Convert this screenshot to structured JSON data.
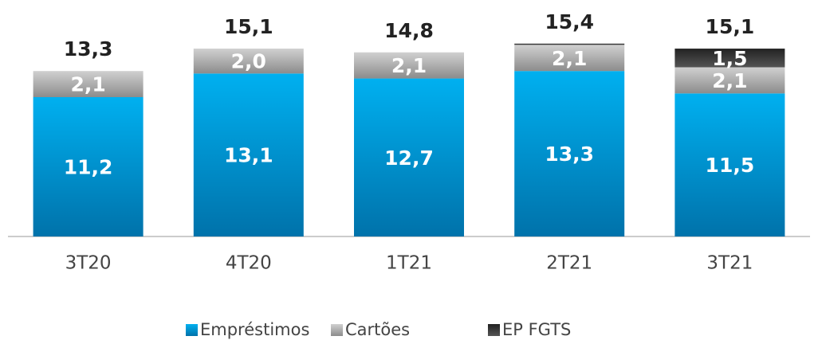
{
  "chart_data": {
    "type": "stacked_bar",
    "categories": [
      "3T20",
      "4T20",
      "1T21",
      "2T21",
      "3T21"
    ],
    "series": [
      {
        "name": "Empréstimos",
        "color": "#00b0f0",
        "values": [
          11.2,
          13.1,
          12.7,
          13.3,
          11.5
        ],
        "value_labels": [
          "11,2",
          "13,1",
          "12,7",
          "13,3",
          "11,5"
        ]
      },
      {
        "name": "Cartões",
        "color": "#a6a6a6",
        "values": [
          2.1,
          2.0,
          2.1,
          2.1,
          2.1
        ],
        "value_labels": [
          "2,1",
          "2,0",
          "2,1",
          "2,1",
          "2,1"
        ]
      },
      {
        "name": "EP FGTS",
        "color": "#333333",
        "values": [
          null,
          null,
          null,
          0.1,
          1.5
        ],
        "value_labels": [
          null,
          null,
          null,
          null,
          "1,5"
        ]
      }
    ],
    "totals": [
      13.3,
      15.1,
      14.8,
      15.4,
      15.1
    ],
    "total_labels": [
      "13,3",
      "15,1",
      "14,8",
      "15,4",
      "15,1"
    ],
    "ylim": [
      0,
      16
    ]
  }
}
